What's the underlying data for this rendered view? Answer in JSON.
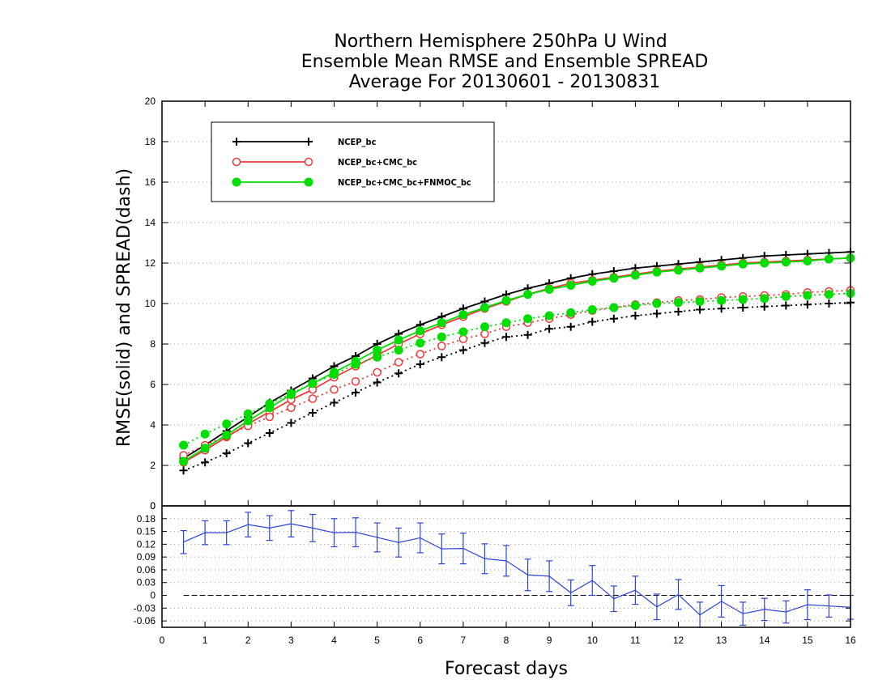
{
  "chart_data": [
    {
      "type": "line",
      "title": [
        "Northern Hemisphere 250hPa U Wind",
        "Ensemble Mean RMSE and Ensemble SPREAD",
        "Average For 20130601 - 20130831"
      ],
      "ylabel": "RMSE(solid) and SPREAD(dash)",
      "ylim": [
        0,
        20
      ],
      "yticks": [
        0,
        2,
        4,
        6,
        8,
        10,
        12,
        14,
        16,
        18,
        20
      ],
      "xlim": [
        0,
        16
      ],
      "x": [
        0.5,
        1,
        1.5,
        2,
        2.5,
        3,
        3.5,
        4,
        4.5,
        5,
        5.5,
        6,
        6.5,
        7,
        7.5,
        8,
        8.5,
        9,
        9.5,
        10,
        10.5,
        11,
        11.5,
        12,
        12.5,
        13,
        13.5,
        14,
        14.5,
        15,
        15.5,
        16
      ],
      "grid": true,
      "legend_position": "top-left",
      "series": [
        {
          "name": "NCEP_bc",
          "color": "#000000",
          "marker": "plus",
          "rmse": [
            2.35,
            3.0,
            3.7,
            4.4,
            5.1,
            5.7,
            6.3,
            6.9,
            7.4,
            8.0,
            8.5,
            8.95,
            9.35,
            9.75,
            10.1,
            10.45,
            10.75,
            11.0,
            11.25,
            11.45,
            11.6,
            11.75,
            11.85,
            11.95,
            12.05,
            12.15,
            12.25,
            12.35,
            12.4,
            12.45,
            12.5,
            12.55
          ],
          "spread": [
            1.75,
            2.15,
            2.6,
            3.1,
            3.6,
            4.1,
            4.6,
            5.1,
            5.6,
            6.1,
            6.55,
            7.0,
            7.35,
            7.7,
            8.05,
            8.35,
            8.45,
            8.75,
            8.85,
            9.1,
            9.25,
            9.4,
            9.5,
            9.6,
            9.7,
            9.75,
            9.8,
            9.85,
            9.9,
            9.95,
            10.0,
            10.05
          ]
        },
        {
          "name": "NCEP_bc+CMC_bc",
          "color": "#ee3a3a",
          "marker": "open-circle",
          "rmse": [
            2.15,
            2.75,
            3.4,
            4.05,
            4.65,
            5.25,
            5.75,
            6.35,
            6.9,
            7.45,
            8.0,
            8.5,
            8.95,
            9.35,
            9.75,
            10.1,
            10.45,
            10.75,
            11.0,
            11.15,
            11.3,
            11.45,
            11.6,
            11.7,
            11.8,
            11.9,
            12.0,
            12.05,
            12.1,
            12.15,
            12.2,
            12.25
          ],
          "spread": [
            2.5,
            3.0,
            3.45,
            3.95,
            4.4,
            4.85,
            5.3,
            5.75,
            6.15,
            6.6,
            7.1,
            7.5,
            7.9,
            8.25,
            8.5,
            8.85,
            9.05,
            9.25,
            9.45,
            9.65,
            9.8,
            9.95,
            10.05,
            10.15,
            10.2,
            10.3,
            10.35,
            10.4,
            10.45,
            10.55,
            10.6,
            10.65
          ]
        },
        {
          "name": "NCEP_bc+CMC_bc+FNMOC_bc",
          "color": "#00dd00",
          "marker": "filled-circle",
          "rmse": [
            2.2,
            2.85,
            3.5,
            4.2,
            4.85,
            5.5,
            6.05,
            6.6,
            7.15,
            7.7,
            8.2,
            8.65,
            9.05,
            9.45,
            9.8,
            10.15,
            10.45,
            10.7,
            10.9,
            11.1,
            11.25,
            11.4,
            11.55,
            11.65,
            11.75,
            11.85,
            11.95,
            12.0,
            12.05,
            12.1,
            12.2,
            12.25
          ],
          "spread": [
            3.0,
            3.55,
            4.05,
            4.55,
            5.05,
            5.55,
            6.05,
            6.5,
            7.0,
            7.35,
            7.7,
            8.05,
            8.35,
            8.6,
            8.85,
            9.05,
            9.25,
            9.4,
            9.55,
            9.7,
            9.8,
            9.9,
            10.0,
            10.05,
            10.1,
            10.15,
            10.2,
            10.25,
            10.35,
            10.4,
            10.45,
            10.5
          ]
        }
      ]
    },
    {
      "type": "line",
      "xlabel": "Forecast days",
      "xlim": [
        0,
        16
      ],
      "xticks": [
        0,
        1,
        2,
        3,
        4,
        5,
        6,
        7,
        8,
        9,
        10,
        11,
        12,
        13,
        14,
        15,
        16
      ],
      "ylim": [
        -0.075,
        0.21
      ],
      "yticks": [
        -0.06,
        -0.03,
        0,
        0.03,
        0.06,
        0.09,
        0.12,
        0.15,
        0.18
      ],
      "ytick_labels": [
        "-0.06",
        "-0.03",
        "0",
        "0.03",
        "0.06",
        "0.09",
        "0.12",
        "0.15",
        "0.18"
      ],
      "top_tick_label": "0",
      "grid": true,
      "reference_line": 0,
      "series": [
        {
          "color": "#2b45d6",
          "error_bars": true,
          "x": [
            0.5,
            1,
            1.5,
            2,
            2.5,
            3,
            3.5,
            4,
            4.5,
            5,
            5.5,
            6,
            6.5,
            7,
            7.5,
            8,
            8.5,
            9,
            9.5,
            10,
            10.5,
            11,
            11.5,
            12,
            12.5,
            13,
            13.5,
            14,
            14.5,
            15,
            15.5,
            16
          ],
          "values": [
            0.125,
            0.147,
            0.147,
            0.166,
            0.158,
            0.168,
            0.158,
            0.147,
            0.148,
            0.136,
            0.124,
            0.135,
            0.109,
            0.11,
            0.086,
            0.081,
            0.048,
            0.045,
            0.006,
            0.035,
            -0.008,
            0.012,
            -0.027,
            0.002,
            -0.046,
            -0.014,
            -0.043,
            -0.033,
            -0.039,
            -0.022,
            -0.025,
            -0.028
          ],
          "errors": [
            0.027,
            0.028,
            0.028,
            0.029,
            0.029,
            0.031,
            0.032,
            0.033,
            0.034,
            0.034,
            0.034,
            0.035,
            0.035,
            0.036,
            0.035,
            0.036,
            0.037,
            0.036,
            0.03,
            0.035,
            0.03,
            0.033,
            0.03,
            0.035,
            0.03,
            0.037,
            0.027,
            0.026,
            0.026,
            0.035,
            0.026,
            0.028
          ]
        }
      ]
    }
  ]
}
